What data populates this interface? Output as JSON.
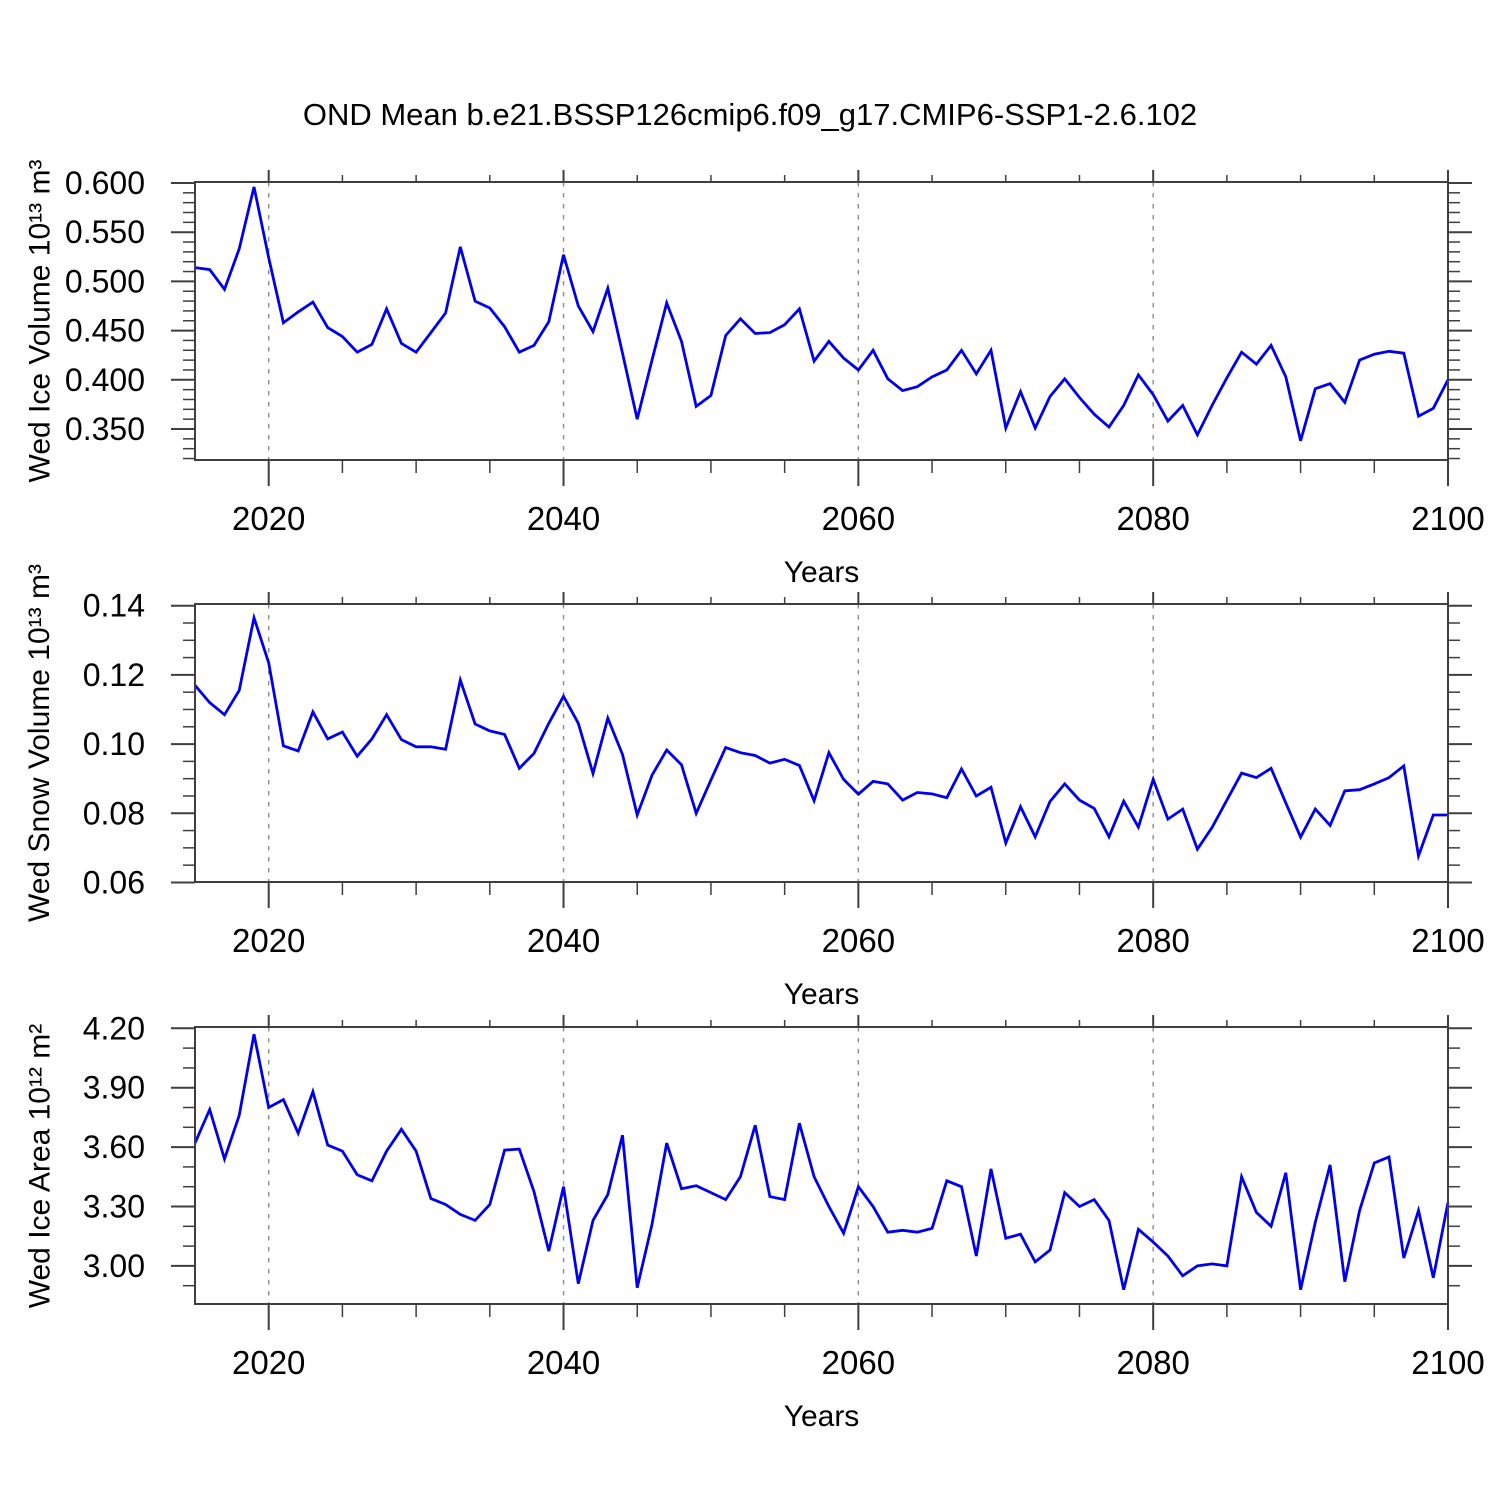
{
  "title": "OND Mean b.e21.BSSP126cmip6.f09_g17.CMIP6-SSP1-2.6.102",
  "colors": {
    "line": "#0000ee",
    "frame": "#3f3f3f",
    "grid": "#8c8c8c",
    "text": "#000000",
    "background": "#ffffff"
  },
  "chart_data": {
    "type": "line",
    "title": "OND Mean b.e21.BSSP126cmip6.f09_g17.CMIP6-SSP1-2.6.102",
    "xlabel": "Years",
    "x_range": [
      2015,
      2100
    ],
    "x": [
      2015,
      2016,
      2017,
      2018,
      2019,
      2020,
      2021,
      2022,
      2023,
      2024,
      2025,
      2026,
      2027,
      2028,
      2029,
      2030,
      2031,
      2032,
      2033,
      2034,
      2035,
      2036,
      2037,
      2038,
      2039,
      2040,
      2041,
      2042,
      2043,
      2044,
      2045,
      2046,
      2047,
      2048,
      2049,
      2050,
      2051,
      2052,
      2053,
      2054,
      2055,
      2056,
      2057,
      2058,
      2059,
      2060,
      2061,
      2062,
      2063,
      2064,
      2065,
      2066,
      2067,
      2068,
      2069,
      2070,
      2071,
      2072,
      2073,
      2074,
      2075,
      2076,
      2077,
      2078,
      2079,
      2080,
      2081,
      2082,
      2083,
      2084,
      2085,
      2086,
      2087,
      2088,
      2089,
      2090,
      2091,
      2092,
      2093,
      2094,
      2095,
      2096,
      2097,
      2098,
      2099,
      2100
    ],
    "xtick_values": [
      2020,
      2040,
      2060,
      2080,
      2100
    ],
    "xtick_labels": [
      "2020",
      "2040",
      "2060",
      "2080",
      "2100"
    ],
    "xminor_step": 5,
    "grid_x": [
      2020,
      2040,
      2060,
      2080
    ],
    "line_color": "#0000ee",
    "panels": [
      {
        "name": "wed-ice-volume",
        "ylabel": "Wed Ice Volume 10¹³ m³",
        "ylim": [
          0.3185,
          0.601
        ],
        "ytick_values": [
          0.6,
          0.55,
          0.5,
          0.45,
          0.4,
          0.35
        ],
        "ytick_labels": [
          "0.600",
          "0.550",
          "0.500",
          "0.450",
          "0.400",
          "0.350"
        ],
        "yminor_step": 0.01,
        "values": [
          0.514,
          0.512,
          0.492,
          0.533,
          0.596,
          0.524,
          0.458,
          0.469,
          0.479,
          0.453,
          0.444,
          0.428,
          0.436,
          0.472,
          0.437,
          0.428,
          0.448,
          0.468,
          0.535,
          0.48,
          0.473,
          0.454,
          0.428,
          0.435,
          0.459,
          0.527,
          0.475,
          0.449,
          0.493,
          0.427,
          0.36,
          0.42,
          0.478,
          0.439,
          0.373,
          0.384,
          0.445,
          0.462,
          0.447,
          0.448,
          0.456,
          0.472,
          0.419,
          0.439,
          0.422,
          0.41,
          0.43,
          0.401,
          0.389,
          0.393,
          0.403,
          0.41,
          0.43,
          0.406,
          0.43,
          0.351,
          0.388,
          0.351,
          0.383,
          0.401,
          0.382,
          0.365,
          0.352,
          0.374,
          0.405,
          0.385,
          0.358,
          0.374,
          0.344,
          0.374,
          0.402,
          0.428,
          0.416,
          0.435,
          0.403,
          0.338,
          0.391,
          0.396,
          0.377,
          0.42,
          0.426,
          0.429,
          0.427,
          0.363,
          0.371,
          0.4
        ]
      },
      {
        "name": "wed-snow-volume",
        "ylabel": "Wed Snow Volume 10¹³ m³",
        "ylim": [
          0.06013,
          0.14049
        ],
        "ytick_values": [
          0.14,
          0.12,
          0.1,
          0.08,
          0.06
        ],
        "ytick_labels": [
          "0.14",
          "0.12",
          "0.10",
          "0.08",
          "0.06"
        ],
        "yminor_step": 0.005,
        "values": [
          0.117,
          0.112,
          0.1085,
          0.1155,
          0.1365,
          0.1235,
          0.0995,
          0.098,
          0.1093,
          0.1015,
          0.1035,
          0.0965,
          0.1015,
          0.1085,
          0.1013,
          0.0992,
          0.0992,
          0.0985,
          0.1185,
          0.1058,
          0.1038,
          0.1028,
          0.093,
          0.0973,
          0.106,
          0.1138,
          0.106,
          0.0915,
          0.1075,
          0.097,
          0.0795,
          0.091,
          0.0983,
          0.094,
          0.08,
          0.0896,
          0.099,
          0.0975,
          0.0967,
          0.0945,
          0.0956,
          0.0938,
          0.0836,
          0.0975,
          0.0898,
          0.0855,
          0.0892,
          0.0885,
          0.0838,
          0.086,
          0.0856,
          0.0845,
          0.0928,
          0.085,
          0.0875,
          0.0714,
          0.0819,
          0.0732,
          0.0834,
          0.0885,
          0.0838,
          0.0814,
          0.0732,
          0.0835,
          0.076,
          0.0898,
          0.0783,
          0.0812,
          0.0696,
          0.0759,
          0.0838,
          0.0916,
          0.0903,
          0.093,
          0.083,
          0.0731,
          0.0812,
          0.0765,
          0.0865,
          0.0868,
          0.0885,
          0.0903,
          0.0937,
          0.0677,
          0.0795,
          0.0795
        ]
      },
      {
        "name": "wed-ice-area",
        "ylabel": "Wed Ice Area 10¹² m²",
        "ylim": [
          2.8076,
          4.2066
        ],
        "ytick_values": [
          4.2,
          3.9,
          3.6,
          3.3,
          3.0
        ],
        "ytick_labels": [
          "4.20",
          "3.90",
          "3.60",
          "3.30",
          "3.00"
        ],
        "yminor_step": 0.1,
        "values": [
          3.62,
          3.79,
          3.54,
          3.76,
          4.17,
          3.8,
          3.84,
          3.67,
          3.88,
          3.61,
          3.58,
          3.46,
          3.43,
          3.58,
          3.69,
          3.58,
          3.34,
          3.31,
          3.26,
          3.23,
          3.31,
          3.585,
          3.59,
          3.375,
          3.075,
          3.4,
          2.91,
          3.23,
          3.36,
          3.66,
          2.89,
          3.21,
          3.62,
          3.39,
          3.405,
          3.37,
          3.335,
          3.45,
          3.71,
          3.35,
          3.335,
          3.72,
          3.45,
          3.3,
          3.165,
          3.4,
          3.3,
          3.17,
          3.18,
          3.17,
          3.19,
          3.43,
          3.4,
          3.05,
          3.49,
          3.14,
          3.16,
          3.02,
          3.08,
          3.37,
          3.3,
          3.335,
          3.23,
          2.88,
          3.185,
          3.12,
          3.05,
          2.95,
          3.0,
          3.01,
          3.0,
          3.45,
          3.27,
          3.2,
          3.47,
          2.88,
          3.22,
          3.51,
          2.92,
          3.28,
          3.52,
          3.55,
          3.04,
          3.28,
          2.94,
          3.32
        ]
      }
    ]
  }
}
